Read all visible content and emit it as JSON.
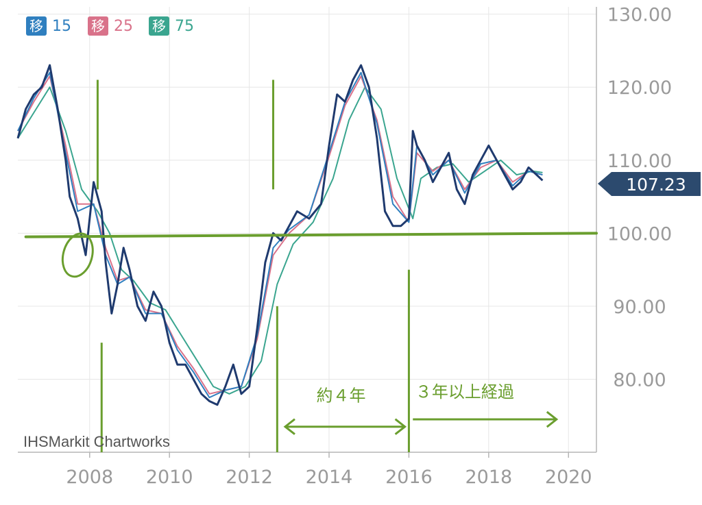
{
  "chart_data": {
    "type": "line",
    "title": "",
    "xlabel": "",
    "ylabel": "",
    "xlim": [
      2006.2,
      2020.7
    ],
    "ylim": [
      70,
      131
    ],
    "x_ticks": [
      2008,
      2010,
      2012,
      2014,
      2016,
      2018,
      2020
    ],
    "x_tick_labels": [
      "2008",
      "2010",
      "2012",
      "2014",
      "2016",
      "2018",
      "2020"
    ],
    "y_ticks": [
      80,
      90,
      100,
      110,
      120,
      130
    ],
    "y_tick_labels": [
      "80.00",
      "90.00",
      "100.00",
      "110.00",
      "120.00",
      "130.00"
    ],
    "grid": true,
    "legend": [
      {
        "chip": "移",
        "label": "15",
        "color": "#2f7fbf"
      },
      {
        "chip": "移",
        "label": "25",
        "color": "#d9728a"
      },
      {
        "chip": "移",
        "label": "75",
        "color": "#3aa58f"
      }
    ],
    "last_price": {
      "value": 107.23,
      "label": "107.23",
      "color": "#2c4a6e"
    },
    "watermark": "IHSMarkit Chartworks",
    "series": [
      {
        "role": "price",
        "color": "#1f3a6e",
        "x": [
          2006.2,
          2006.4,
          2006.6,
          2006.8,
          2007.0,
          2007.2,
          2007.4,
          2007.5,
          2007.7,
          2007.9,
          2008.1,
          2008.3,
          2008.4,
          2008.55,
          2008.7,
          2008.85,
          2009.0,
          2009.2,
          2009.4,
          2009.6,
          2009.8,
          2010.0,
          2010.2,
          2010.4,
          2010.6,
          2010.8,
          2011.0,
          2011.2,
          2011.4,
          2011.6,
          2011.8,
          2012.0,
          2012.2,
          2012.4,
          2012.6,
          2012.8,
          2013.0,
          2013.2,
          2013.5,
          2013.8,
          2014.0,
          2014.2,
          2014.4,
          2014.6,
          2014.8,
          2015.0,
          2015.2,
          2015.4,
          2015.6,
          2015.8,
          2016.0,
          2016.1,
          2016.2,
          2016.4,
          2016.6,
          2016.8,
          2017.0,
          2017.2,
          2017.4,
          2017.6,
          2017.8,
          2018.0,
          2018.2,
          2018.4,
          2018.6,
          2018.8,
          2019.0,
          2019.2,
          2019.35
        ],
        "y": [
          113,
          117,
          119,
          120,
          123,
          117,
          110,
          105,
          102,
          97,
          107,
          103,
          96,
          89,
          93,
          98,
          95,
          90,
          88,
          92,
          90,
          85,
          82,
          82,
          80,
          78,
          77,
          76.5,
          79,
          82,
          78,
          79,
          87,
          96,
          100,
          99,
          101,
          103,
          102,
          104,
          112,
          119,
          118,
          121,
          123,
          120,
          113,
          103,
          101,
          101,
          102,
          114,
          112,
          110,
          107,
          109,
          111,
          106,
          104,
          108,
          110,
          112,
          110,
          108,
          106,
          107,
          109,
          108,
          107.23
        ]
      },
      {
        "name": "15",
        "color": "#2f7fbf",
        "x": [
          2006.2,
          2006.6,
          2007.0,
          2007.4,
          2007.7,
          2008.1,
          2008.4,
          2008.7,
          2009.0,
          2009.4,
          2009.8,
          2010.2,
          2010.6,
          2011.0,
          2011.4,
          2011.8,
          2012.2,
          2012.6,
          2013.0,
          2013.5,
          2014.0,
          2014.4,
          2014.8,
          2015.2,
          2015.6,
          2016.0,
          2016.2,
          2016.6,
          2017.0,
          2017.4,
          2017.8,
          2018.2,
          2018.6,
          2019.0,
          2019.35
        ],
        "y": [
          114,
          118.5,
          122,
          111,
          103,
          104,
          97,
          93,
          94,
          89,
          89,
          84,
          81,
          77.5,
          78.5,
          79,
          86,
          98,
          100.5,
          102.5,
          111,
          118,
          122,
          115,
          104,
          101.5,
          112,
          108,
          110,
          105.5,
          109.5,
          110,
          106.5,
          108.5,
          108
        ]
      },
      {
        "name": "25",
        "color": "#d9728a",
        "x": [
          2006.2,
          2006.6,
          2007.0,
          2007.4,
          2007.7,
          2008.1,
          2008.4,
          2008.7,
          2009.0,
          2009.4,
          2009.8,
          2010.2,
          2010.6,
          2011.0,
          2011.4,
          2011.8,
          2012.2,
          2012.6,
          2013.0,
          2013.5,
          2014.0,
          2014.4,
          2014.8,
          2015.2,
          2015.6,
          2016.0,
          2016.2,
          2016.6,
          2017.0,
          2017.4,
          2017.8,
          2018.2,
          2018.6,
          2019.0,
          2019.35
        ],
        "y": [
          114,
          118,
          121.5,
          112,
          104,
          104,
          98,
          93.5,
          94,
          89.5,
          89,
          84.5,
          81.5,
          78,
          78.5,
          79,
          85.5,
          97,
          100,
          102.5,
          110.5,
          117.5,
          121.5,
          115.5,
          105,
          101.5,
          111,
          108.5,
          110,
          106,
          109,
          110,
          107,
          108.5,
          108
        ]
      },
      {
        "name": "75",
        "color": "#3aa58f",
        "x": [
          2006.2,
          2006.6,
          2007.0,
          2007.4,
          2007.8,
          2008.2,
          2008.5,
          2008.8,
          2009.1,
          2009.5,
          2009.9,
          2010.3,
          2010.7,
          2011.1,
          2011.5,
          2011.9,
          2012.3,
          2012.7,
          2013.1,
          2013.6,
          2014.1,
          2014.5,
          2014.9,
          2015.3,
          2015.7,
          2016.1,
          2016.3,
          2016.7,
          2017.1,
          2017.5,
          2017.9,
          2018.3,
          2018.7,
          2019.1,
          2019.35
        ],
        "y": [
          113,
          116.5,
          120,
          114,
          106,
          103,
          100,
          95,
          93.5,
          90.5,
          89.5,
          86,
          82.5,
          79,
          78,
          79,
          82.5,
          93,
          98.5,
          101.5,
          107.5,
          115.5,
          120,
          117,
          107.5,
          102,
          107.5,
          109,
          109.5,
          107,
          108.5,
          110,
          108,
          108.5,
          108.3
        ]
      }
    ],
    "annotations": {
      "color": "#6a9e2e",
      "horizontal_line": {
        "x": [
          2006.4,
          2020.7
        ],
        "y": [
          99.5,
          100.0
        ]
      },
      "vertical_lines": [
        {
          "x": 2008.2,
          "y_top": 121,
          "y_bottom": 106
        },
        {
          "x": 2008.3,
          "y_top": 85,
          "y_bottom": 70
        },
        {
          "x": 2012.6,
          "y_top": 121,
          "y_bottom": 106
        },
        {
          "x": 2012.7,
          "y_top": 90,
          "y_bottom": 70
        },
        {
          "x": 2016.0,
          "y_top": 95,
          "y_bottom": 70
        }
      ],
      "circle": {
        "x": 2007.7,
        "y": 97
      },
      "arrows": [
        {
          "from": 2012.9,
          "to": 2015.9,
          "y": 73.5,
          "direction": "both"
        },
        {
          "from": 2016.1,
          "to": 2019.7,
          "y": 74.5,
          "direction": "right"
        }
      ],
      "labels": [
        {
          "text": "約４年",
          "x": 2014.3,
          "y": 77
        },
        {
          "text": "３年以上経過",
          "x": 2017.4,
          "y": 77.5
        }
      ]
    }
  }
}
